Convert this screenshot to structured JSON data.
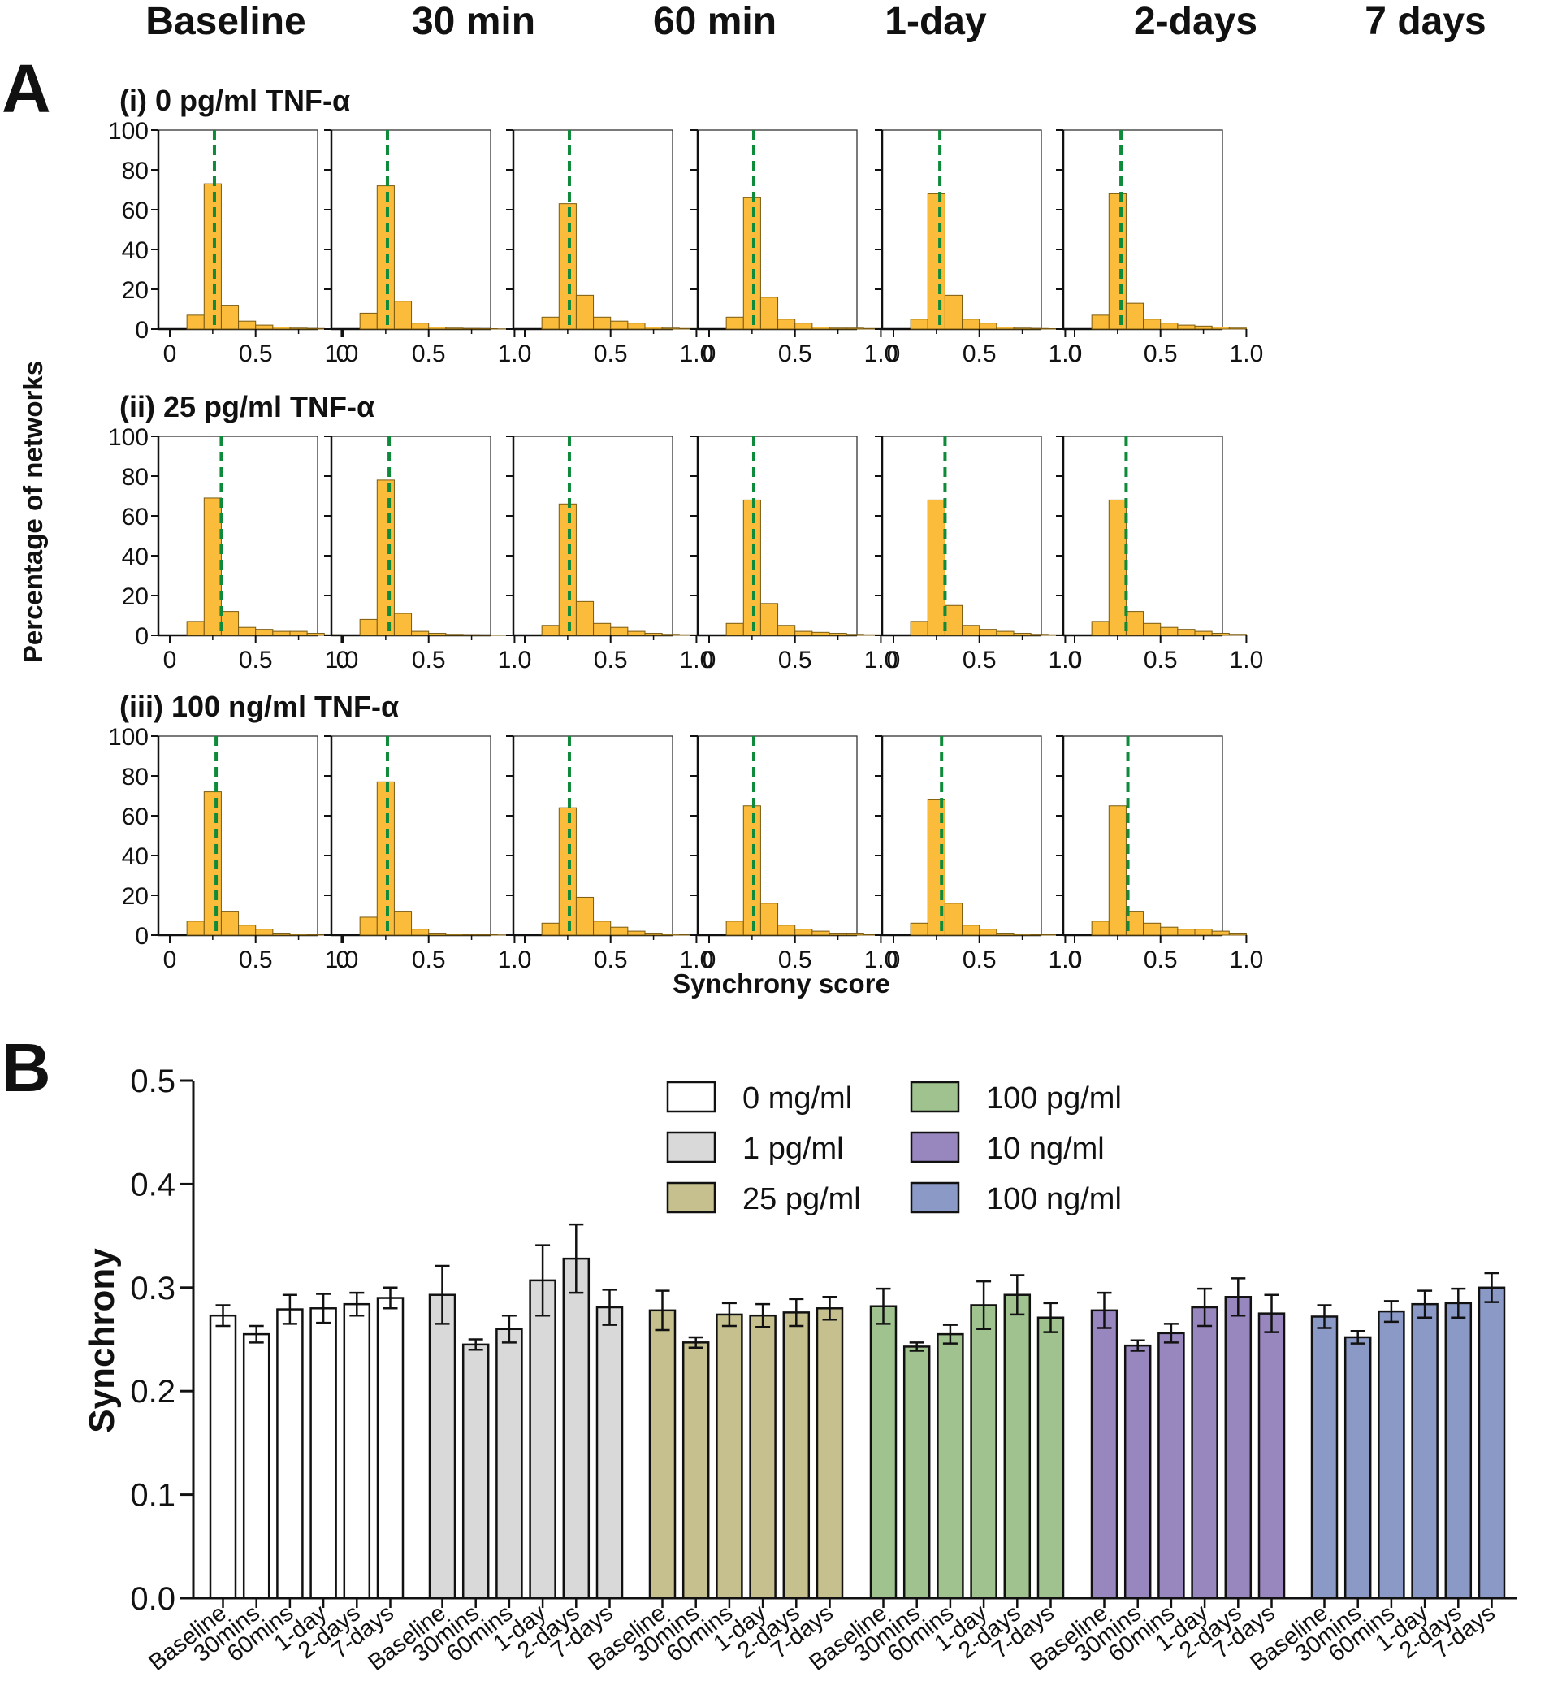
{
  "chart_data": [
    {
      "panel": "A",
      "type": "bar",
      "subtype": "histogram",
      "column_headers": [
        "Baseline",
        "30 min",
        "60 min",
        "1-day",
        "2-days",
        "7 days"
      ],
      "ylabel": "Percentage of networks",
      "xlabel": "Synchrony score",
      "xlim": [
        0,
        1.05
      ],
      "ylim": [
        0,
        100
      ],
      "yticks": [
        "0",
        "20",
        "40",
        "60",
        "80",
        "100"
      ],
      "xticks": [
        "0",
        "0.5",
        "1.0"
      ],
      "bin_edges": [
        0.1,
        0.2,
        0.3,
        0.4,
        0.5,
        0.6,
        0.7,
        0.8,
        0.9,
        1.0
      ],
      "bar_color": "#FBBC3C",
      "median_line_color": "#0E8A3A",
      "rows": [
        {
          "title": "(i) 0 pg/ml TNF-α",
          "plots": [
            {
              "counts": [
                7,
                73,
                12,
                4,
                2,
                1,
                0.5,
                0.3,
                0.2
              ],
              "median": 0.26
            },
            {
              "counts": [
                8,
                72,
                14,
                3,
                1,
                0.5,
                0.3,
                0.2,
                0.1
              ],
              "median": 0.26
            },
            {
              "counts": [
                6,
                63,
                17,
                6,
                4,
                3,
                1,
                0.5,
                0.3
              ],
              "median": 0.26
            },
            {
              "counts": [
                6,
                66,
                16,
                5,
                3,
                1,
                0.5,
                0.5,
                0.3
              ],
              "median": 0.26
            },
            {
              "counts": [
                5,
                68,
                17,
                5,
                3,
                1,
                0.5,
                0.3,
                0.2
              ],
              "median": 0.27
            },
            {
              "counts": [
                7,
                68,
                13,
                5,
                3,
                2,
                1.5,
                1,
                0.5
              ],
              "median": 0.27
            }
          ]
        },
        {
          "title": "(ii) 25 pg/ml TNF-α",
          "plots": [
            {
              "counts": [
                7,
                69,
                12,
                4,
                3,
                2,
                2,
                1,
                0.3
              ],
              "median": 0.3
            },
            {
              "counts": [
                8,
                78,
                11,
                2,
                1,
                0.5,
                0.3,
                0.2,
                0.1
              ],
              "median": 0.27
            },
            {
              "counts": [
                5,
                66,
                17,
                6,
                4,
                2,
                1,
                0.5,
                0.3
              ],
              "median": 0.26
            },
            {
              "counts": [
                6,
                68,
                16,
                5,
                2,
                1.5,
                1,
                0.5,
                0.3
              ],
              "median": 0.26
            },
            {
              "counts": [
                7,
                68,
                15,
                5,
                3,
                2,
                1,
                0.5,
                0.3
              ],
              "median": 0.3
            },
            {
              "counts": [
                7,
                68,
                12,
                6,
                4,
                3,
                2,
                1,
                0.5
              ],
              "median": 0.3
            }
          ]
        },
        {
          "title": "(iii) 100 ng/ml TNF-α",
          "plots": [
            {
              "counts": [
                7,
                72,
                12,
                5,
                3,
                1,
                0.5,
                0.3,
                0.2
              ],
              "median": 0.27
            },
            {
              "counts": [
                9,
                77,
                12,
                3,
                1,
                0.5,
                0.3,
                0.2,
                0.1
              ],
              "median": 0.26
            },
            {
              "counts": [
                6,
                64,
                19,
                7,
                4,
                2,
                1,
                0.5,
                0.3
              ],
              "median": 0.26
            },
            {
              "counts": [
                7,
                65,
                16,
                5,
                3,
                2,
                1,
                1,
                0.3
              ],
              "median": 0.26
            },
            {
              "counts": [
                6,
                68,
                16,
                5,
                3,
                1,
                0.5,
                0.3,
                0.2
              ],
              "median": 0.28
            },
            {
              "counts": [
                7,
                65,
                12,
                6,
                4,
                3,
                3,
                2,
                1
              ],
              "median": 0.31
            }
          ]
        }
      ]
    },
    {
      "panel": "B",
      "type": "bar",
      "title": "",
      "ylabel": "Synchrony",
      "xlabel": "",
      "ylim": [
        0,
        0.5
      ],
      "yticks": [
        "0.0",
        "0.1",
        "0.2",
        "0.3",
        "0.4",
        "0.5"
      ],
      "categories": [
        "Baseline",
        "30mins",
        "60mins",
        "1-day",
        "2-days",
        "7-days"
      ],
      "series": [
        {
          "name": "0 mg/ml",
          "color": "#FFFFFF",
          "values": [
            0.273,
            0.255,
            0.279,
            0.28,
            0.284,
            0.29
          ],
          "errors": [
            0.01,
            0.008,
            0.014,
            0.014,
            0.011,
            0.01
          ]
        },
        {
          "name": "1 pg/ml",
          "color": "#D9D9D9",
          "values": [
            0.293,
            0.245,
            0.26,
            0.307,
            0.328,
            0.281
          ],
          "errors": [
            0.028,
            0.005,
            0.013,
            0.034,
            0.033,
            0.017
          ]
        },
        {
          "name": "25 pg/ml",
          "color": "#C5C08E",
          "values": [
            0.278,
            0.247,
            0.274,
            0.273,
            0.276,
            0.28
          ],
          "errors": [
            0.019,
            0.005,
            0.011,
            0.011,
            0.013,
            0.011
          ]
        },
        {
          "name": "100 pg/ml",
          "color": "#9FC28F",
          "values": [
            0.282,
            0.243,
            0.255,
            0.283,
            0.293,
            0.271
          ],
          "errors": [
            0.017,
            0.004,
            0.009,
            0.023,
            0.019,
            0.014
          ]
        },
        {
          "name": "10 ng/ml",
          "color": "#9886BF",
          "values": [
            0.278,
            0.244,
            0.256,
            0.281,
            0.291,
            0.275
          ],
          "errors": [
            0.017,
            0.005,
            0.009,
            0.018,
            0.018,
            0.018
          ]
        },
        {
          "name": "100 ng/ml",
          "color": "#8B99C6",
          "values": [
            0.272,
            0.252,
            0.277,
            0.284,
            0.285,
            0.3
          ],
          "errors": [
            0.011,
            0.006,
            0.01,
            0.013,
            0.014,
            0.014
          ]
        }
      ],
      "legend_position": "top-right"
    }
  ]
}
